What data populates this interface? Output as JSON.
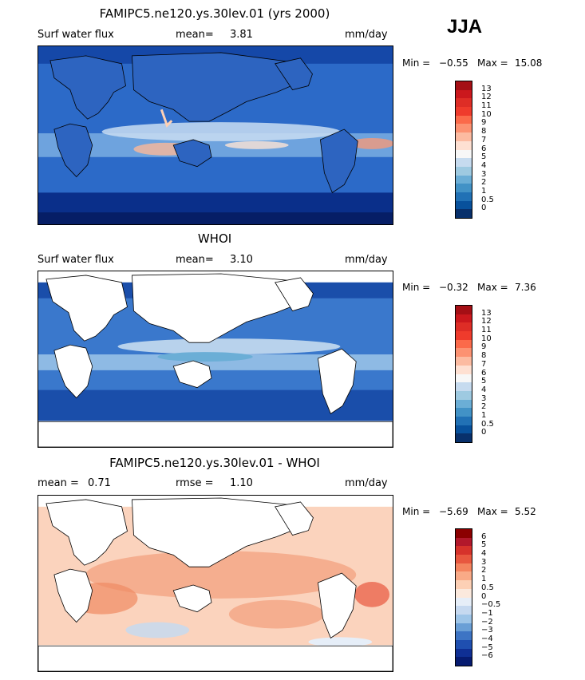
{
  "season": "JJA",
  "units": "mm/day",
  "chart_data": [
    {
      "type": "heatmap",
      "title": "FAMIPC5.ne120.ys.30lev.01 (yrs 2000)",
      "field": "Surf water flux",
      "stat_label": "mean=",
      "stat_value": "3.81",
      "units": "mm/day",
      "min_label": "Min =",
      "min_value": "−0.55",
      "max_label": "Max =",
      "max_value": "15.08",
      "colorbar_levels": [
        "13",
        "12",
        "11",
        "10",
        "9",
        "8",
        "7",
        "6",
        "5",
        "4",
        "3",
        "2",
        "1",
        "0.5",
        "0"
      ],
      "colorbar_colors": [
        "#a50f15",
        "#cb181d",
        "#de2d26",
        "#ef3b2c",
        "#fb6a4a",
        "#fc9272",
        "#fcbba1",
        "#fee0d2",
        "#f7f7f7",
        "#c6dbef",
        "#9ecae1",
        "#6baed6",
        "#4292c6",
        "#2171b5",
        "#08519c",
        "#08306b"
      ]
    },
    {
      "type": "heatmap",
      "title": "WHOI",
      "field": "Surf water flux",
      "stat_label": "mean=",
      "stat_value": "3.10",
      "units": "mm/day",
      "min_label": "Min =",
      "min_value": "−0.32",
      "max_label": "Max =",
      "max_value": "7.36",
      "colorbar_levels": [
        "13",
        "12",
        "11",
        "10",
        "9",
        "8",
        "7",
        "6",
        "5",
        "4",
        "3",
        "2",
        "1",
        "0.5",
        "0"
      ],
      "colorbar_colors": [
        "#a50f15",
        "#cb181d",
        "#de2d26",
        "#ef3b2c",
        "#fb6a4a",
        "#fc9272",
        "#fcbba1",
        "#fee0d2",
        "#f7f7f7",
        "#c6dbef",
        "#9ecae1",
        "#6baed6",
        "#4292c6",
        "#2171b5",
        "#08519c",
        "#08306b"
      ]
    },
    {
      "type": "heatmap",
      "title": "FAMIPC5.ne120.ys.30lev.01 - WHOI",
      "stat1_label": "mean =",
      "stat1_value": "0.71",
      "stat2_label": "rmse =",
      "stat2_value": "1.10",
      "units": "mm/day",
      "min_label": "Min =",
      "min_value": "−5.69",
      "max_label": "Max =",
      "max_value": "5.52",
      "colorbar_levels": [
        "6",
        "5",
        "4",
        "3",
        "2",
        "1",
        "0.5",
        "0",
        "−0.5",
        "−1",
        "−2",
        "−3",
        "−4",
        "−5",
        "−6"
      ],
      "colorbar_colors": [
        "#8b0000",
        "#b2182b",
        "#d6322b",
        "#e8573f",
        "#f4845f",
        "#f9aa87",
        "#fdd0b5",
        "#fbe9dd",
        "#e6eef8",
        "#c6d9f0",
        "#9ec5e8",
        "#6a9fd6",
        "#3d74c4",
        "#1f4fb0",
        "#0f2f94",
        "#061b70"
      ]
    }
  ]
}
